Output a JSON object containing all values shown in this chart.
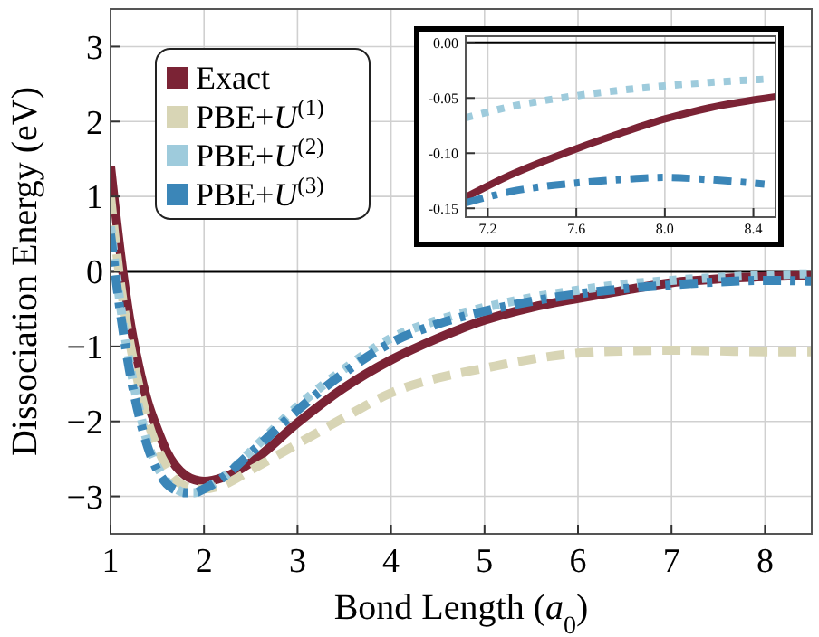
{
  "chart_data": [
    {
      "type": "line",
      "xlabel": "Bond Length (a$_{0}$)",
      "ylabel": "Dissociation Energy (eV)",
      "xlim": [
        1,
        8.5
      ],
      "ylim": [
        -3.5,
        3.5
      ],
      "xticks": [
        1,
        2,
        3,
        4,
        5,
        6,
        7,
        8
      ],
      "yticks": [
        {
          "value": -3,
          "label": "−3"
        },
        {
          "value": -2,
          "label": "−2"
        },
        {
          "value": -1,
          "label": "−1"
        },
        0,
        1,
        2,
        3
      ],
      "grid": true,
      "legend": "top left",
      "ref_lines": [
        {
          "axis": "y",
          "value": 0,
          "color": "#000000"
        }
      ],
      "series": [
        {
          "name": "Exact",
          "color": "#7b2335",
          "line_style": "solid",
          "x": [
            1.0,
            1.1,
            1.2,
            1.3,
            1.4,
            1.5,
            1.6,
            1.7,
            1.8,
            1.9,
            2.0,
            2.2,
            2.5,
            3.0,
            3.5,
            4.0,
            4.5,
            5.0,
            5.5,
            6.0,
            6.5,
            7.0,
            7.5,
            8.0,
            8.5
          ],
          "values": [
            1.4,
            0.3,
            -0.6,
            -1.25,
            -1.75,
            -2.1,
            -2.4,
            -2.6,
            -2.72,
            -2.78,
            -2.8,
            -2.75,
            -2.55,
            -2.02,
            -1.55,
            -1.18,
            -0.89,
            -0.65,
            -0.48,
            -0.36,
            -0.25,
            -0.15,
            -0.1,
            -0.07,
            -0.05
          ]
        },
        {
          "name": "PBE+U$^{(1)}$",
          "color": "#d8d5b5",
          "line_style": "dashed",
          "x": [
            1.0,
            1.1,
            1.2,
            1.3,
            1.4,
            1.5,
            1.6,
            1.7,
            1.8,
            1.9,
            2.0,
            2.2,
            2.5,
            3.0,
            3.5,
            4.0,
            4.5,
            5.0,
            5.5,
            6.0,
            6.5,
            7.0,
            7.5,
            8.0,
            8.5
          ],
          "values": [
            1.0,
            -0.1,
            -0.9,
            -1.5,
            -2.0,
            -2.35,
            -2.6,
            -2.78,
            -2.87,
            -2.9,
            -2.9,
            -2.85,
            -2.65,
            -2.3,
            -1.95,
            -1.62,
            -1.42,
            -1.29,
            -1.17,
            -1.09,
            -1.06,
            -1.05,
            -1.06,
            -1.07,
            -1.07
          ]
        },
        {
          "name": "PBE+U$^{(2)}$",
          "color": "#9ecbdc",
          "line_style": "dotted",
          "x": [
            1.0,
            1.1,
            1.2,
            1.3,
            1.4,
            1.5,
            1.6,
            1.7,
            1.8,
            1.9,
            2.0,
            2.2,
            2.5,
            3.0,
            3.5,
            4.0,
            4.5,
            5.0,
            5.5,
            6.0,
            6.5,
            7.0,
            7.5,
            8.0,
            8.5
          ],
          "values": [
            0.6,
            -0.4,
            -1.2,
            -1.8,
            -2.3,
            -2.6,
            -2.8,
            -2.9,
            -2.95,
            -2.95,
            -2.9,
            -2.75,
            -2.4,
            -1.8,
            -1.3,
            -0.89,
            -0.65,
            -0.48,
            -0.35,
            -0.25,
            -0.17,
            -0.12,
            -0.08,
            -0.05,
            -0.03
          ]
        },
        {
          "name": "PBE+U$^{(3)}$",
          "color": "#3b86b8",
          "line_style": "dashdot",
          "x": [
            1.0,
            1.1,
            1.2,
            1.3,
            1.4,
            1.5,
            1.6,
            1.7,
            1.8,
            1.9,
            2.0,
            2.2,
            2.5,
            3.0,
            3.5,
            4.0,
            4.5,
            5.0,
            5.5,
            6.0,
            6.5,
            7.0,
            7.5,
            8.0,
            8.5
          ],
          "values": [
            0.5,
            -0.5,
            -1.3,
            -1.9,
            -2.35,
            -2.65,
            -2.83,
            -2.92,
            -2.95,
            -2.95,
            -2.9,
            -2.75,
            -2.42,
            -1.85,
            -1.35,
            -0.95,
            -0.7,
            -0.53,
            -0.4,
            -0.3,
            -0.23,
            -0.18,
            -0.14,
            -0.12,
            -0.13
          ]
        }
      ]
    },
    {
      "type": "line",
      "xlim": [
        7.1,
        8.5
      ],
      "ylim": [
        -0.158,
        0.006
      ],
      "xticks": [
        7.2,
        7.6,
        {
          "value": 8,
          "label": "8.0"
        },
        8.4
      ],
      "yticks": [
        {
          "value": 0,
          "label": "0.00"
        },
        {
          "value": -0.05,
          "label": "-0.05"
        },
        {
          "value": -0.1,
          "label": "-0.10"
        },
        {
          "value": -0.15,
          "label": "-0.15"
        }
      ],
      "grid": true,
      "ref_lines": [
        {
          "axis": "y",
          "value": 0,
          "color": "#000000"
        }
      ],
      "series": [
        {
          "color": "#9ecbdc",
          "line_style": "dotted",
          "x": [
            7.1,
            7.3,
            7.6,
            7.8,
            8.0,
            8.2,
            8.45
          ],
          "values": [
            -0.068,
            -0.058,
            -0.048,
            -0.043,
            -0.039,
            -0.036,
            -0.033
          ]
        },
        {
          "color": "#7b2335",
          "line_style": "solid",
          "x": [
            7.1,
            7.3,
            7.6,
            7.8,
            8.0,
            8.2,
            8.5
          ],
          "values": [
            -0.14,
            -0.12,
            -0.096,
            -0.082,
            -0.069,
            -0.059,
            -0.049
          ]
        },
        {
          "color": "#3b86b8",
          "line_style": "dashdot",
          "x": [
            7.1,
            7.3,
            7.6,
            7.8,
            8.0,
            8.2,
            8.45
          ],
          "values": [
            -0.145,
            -0.135,
            -0.127,
            -0.124,
            -0.122,
            -0.124,
            -0.128
          ]
        }
      ]
    }
  ]
}
